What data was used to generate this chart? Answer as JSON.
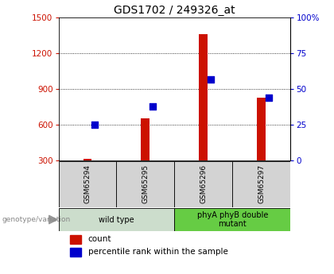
{
  "title": "GDS1702 / 249326_at",
  "samples": [
    "GSM65294",
    "GSM65295",
    "GSM65296",
    "GSM65297"
  ],
  "counts": [
    312,
    655,
    1365,
    830
  ],
  "percentiles": [
    25,
    38,
    57,
    44
  ],
  "ylim_left": [
    300,
    1500
  ],
  "ylim_right": [
    0,
    100
  ],
  "yticks_left": [
    300,
    600,
    900,
    1200,
    1500
  ],
  "yticks_right": [
    0,
    25,
    50,
    75,
    100
  ],
  "bar_color": "#cc1100",
  "dot_color": "#0000cc",
  "title_fontsize": 10,
  "groups": [
    {
      "label": "wild type",
      "indices": [
        0,
        1
      ],
      "color": "#ccddcc"
    },
    {
      "label": "phyA phyB double\nmutant",
      "indices": [
        2,
        3
      ],
      "color": "#66cc44"
    }
  ],
  "legend_items": [
    {
      "label": "count",
      "color": "#cc1100"
    },
    {
      "label": "percentile rank within the sample",
      "color": "#0000cc"
    }
  ],
  "annotation_text": "genotype/variation",
  "bar_width": 0.15
}
